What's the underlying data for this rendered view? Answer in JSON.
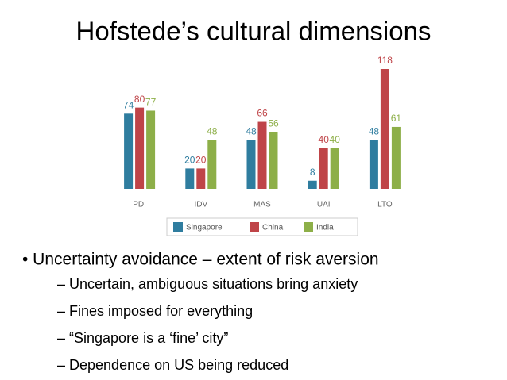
{
  "title": "Hofstede’s cultural dimensions",
  "chart_data": {
    "type": "bar",
    "categories": [
      "PDI",
      "IDV",
      "MAS",
      "UAI",
      "LTO"
    ],
    "series": [
      {
        "name": "Singapore",
        "color": "#2f7d9f",
        "values": [
          74,
          20,
          48,
          8,
          48
        ]
      },
      {
        "name": "China",
        "color": "#bf4448",
        "values": [
          80,
          20,
          66,
          40,
          118
        ]
      },
      {
        "name": "India",
        "color": "#8daf48",
        "values": [
          77,
          48,
          56,
          40,
          61
        ]
      }
    ],
    "legend": "bottom"
  },
  "bullets": [
    {
      "text": "• Uncertainty avoidance – extent of risk aversion",
      "items": [
        "– Uncertain, ambiguous situations bring anxiety",
        "– Fines imposed for everything",
        "– “Singapore is a ‘fine’ city”",
        "– Dependence on US being reduced"
      ]
    }
  ]
}
